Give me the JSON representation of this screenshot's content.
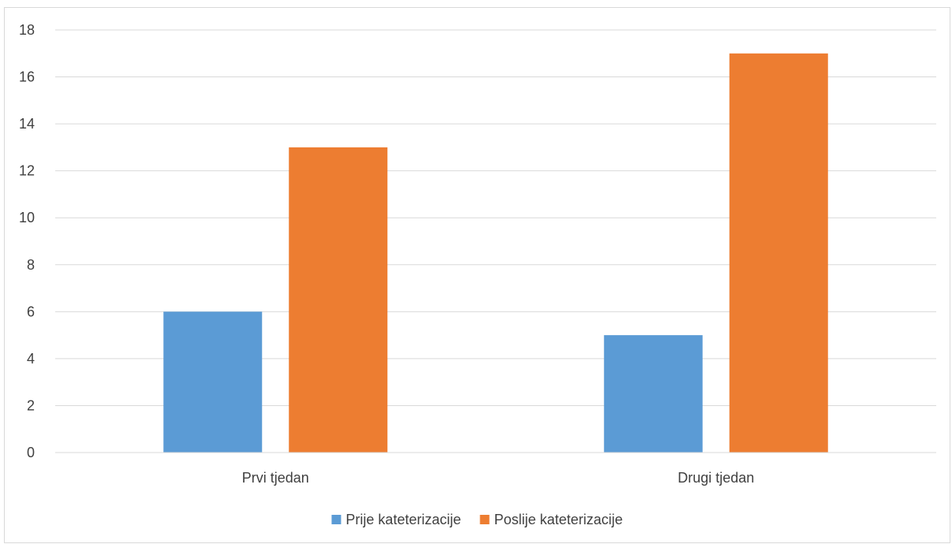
{
  "chart_data": {
    "type": "bar",
    "title": "",
    "xlabel": "",
    "ylabel": "",
    "categories": [
      "Prvi tjedan",
      "Drugi tjedan"
    ],
    "series": [
      {
        "name": "Prije kateterizacije",
        "values": [
          6,
          5
        ],
        "color": "#5b9bd5"
      },
      {
        "name": "Poslije kateterizacije",
        "values": [
          13,
          17
        ],
        "color": "#ed7d31"
      }
    ],
    "ylim": [
      0,
      18
    ],
    "yticks": [
      "0",
      "2",
      "4",
      "6",
      "8",
      "10",
      "12",
      "14",
      "16",
      "18"
    ],
    "grid": true,
    "legend_position": "bottom",
    "gridline_color": "#d9d9d9"
  }
}
